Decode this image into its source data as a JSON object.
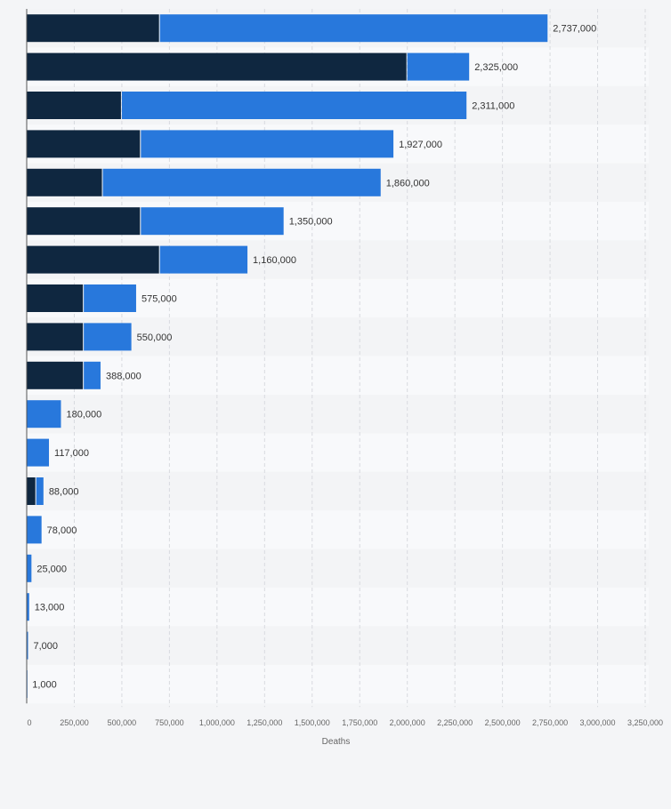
{
  "chart_data": {
    "type": "bar",
    "orientation": "horizontal",
    "stacked": true,
    "xlabel": "Deaths",
    "xlim": [
      0,
      3250000
    ],
    "grid": true,
    "categories": [
      "",
      "",
      "",
      "",
      "",
      "",
      "",
      "",
      "",
      "",
      "",
      "",
      "",
      "",
      "",
      "",
      "",
      ""
    ],
    "series": [
      {
        "color": "#0f2740",
        "values": [
          700000,
          2000000,
          500000,
          600000,
          400000,
          600000,
          700000,
          300000,
          300000,
          300000,
          0,
          0,
          50000,
          0,
          0,
          0,
          0,
          0
        ]
      },
      {
        "color": "#2878dc",
        "values": [
          2037000,
          325000,
          1811000,
          1327000,
          1460000,
          750000,
          460000,
          275000,
          250000,
          88000,
          180000,
          117000,
          38000,
          78000,
          25000,
          13000,
          7000,
          1000
        ]
      }
    ],
    "totals": [
      2737000,
      2325000,
      2311000,
      1927000,
      1860000,
      1350000,
      1160000,
      575000,
      550000,
      388000,
      180000,
      117000,
      88000,
      78000,
      25000,
      13000,
      7000,
      1000
    ],
    "total_labels": [
      "2,737,000",
      "2,325,000",
      "2,311,000",
      "1,927,000",
      "1,860,000",
      "1,350,000",
      "1,160,000",
      "575,000",
      "550,000",
      "388,000",
      "180,000",
      "117,000",
      "88,000",
      "78,000",
      "25,000",
      "13,000",
      "7,000",
      "1,000"
    ],
    "ticks": [
      0,
      250000,
      500000,
      750000,
      1000000,
      1250000,
      1500000,
      1750000,
      2000000,
      2250000,
      2500000,
      2750000,
      3000000,
      3250000
    ],
    "tick_labels": [
      "0",
      "250,000",
      "500,000",
      "750,000",
      "1,000,000",
      "1,250,000",
      "1,500,000",
      "1,750,000",
      "2,000,000",
      "2,250,000",
      "2,500,000",
      "2,750,000",
      "3,000,000",
      "3,250,000"
    ]
  },
  "colors": {
    "row_even": "#f3f4f6",
    "row_odd": "#f8f9fb",
    "grid": "#d8dadf",
    "axis": "#555555"
  }
}
